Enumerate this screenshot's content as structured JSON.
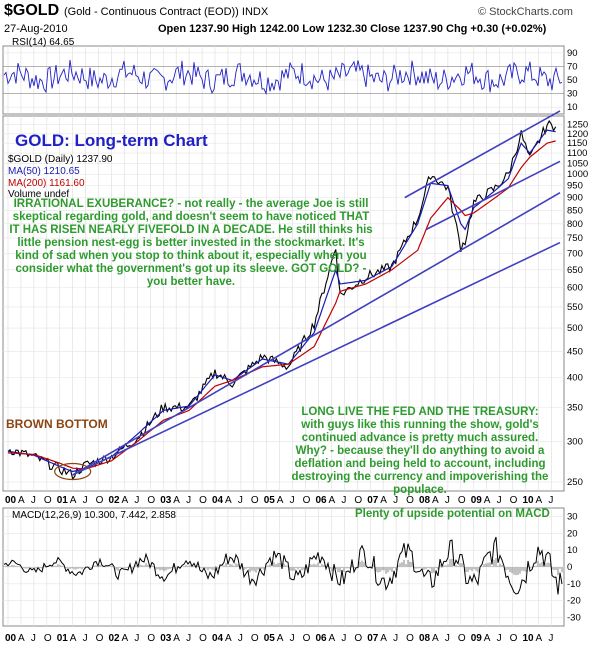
{
  "header": {
    "symbol": "$GOLD",
    "name": "(Gold - Continuous Contract (EOD)) INDX",
    "date": "27-Aug-2010",
    "ohlc": "Open 1237.90  High 1242.00  Low 1232.30  Close 1237.90  Chg +0.30 (+0.02%)",
    "site": "© StockCharts.com"
  },
  "rsi": {
    "label": "RSI(14) 64.65",
    "ticks": [
      "90",
      "70",
      "50",
      "30",
      "10"
    ]
  },
  "title": "GOLD: Long-term Chart",
  "legend": {
    "price": "$GOLD (Daily) 1237.90",
    "ma50": "MA(50) 1210.65",
    "ma200": "MA(200) 1161.60",
    "volume": "Volume undef"
  },
  "colors": {
    "price": "#000000",
    "ma50": "#1a1ab4",
    "ma200": "#c00000",
    "annotation": "#2e9b2e",
    "brown": "#8b4513",
    "trendline": "#4040c0",
    "rsi": "#2020c8"
  },
  "annotations": {
    "irrational": "IRRATIONAL EXUBERANCE? - not really - the average Joe is still skeptical regarding gold, and doesn't seem to have noticed THAT IT HAS RISEN NEARLY FIVEFOLD IN A DECADE. He still thinks his little pension nest-egg is better invested in the stockmarket. It's kind of sad when you stop to think about it, especially when you consider what the government's got up its sleeve. GOT GOLD? - you better have.",
    "brown_bottom": "BROWN BOTTOM",
    "fed": "LONG LIVE THE FED AND THE TREASURY: with guys like this running the show, gold's continued advance is pretty much assured. Why? - because they'll do anything to avoid a deflation and being held to account, including destroying the currency and impoverishing the populace.",
    "macd_note": "Plenty of upside potential on MACD"
  },
  "macd": {
    "label": "MACD(12,26,9) 10.300, 7.442, 2.858",
    "ticks": [
      "30",
      "20",
      "10",
      "0",
      "-10",
      "-20",
      "-30"
    ]
  },
  "x_labels": [
    "00",
    "A",
    "J",
    "O",
    "01",
    "A",
    "J",
    "O",
    "02",
    "A",
    "J",
    "O",
    "03",
    "A",
    "J",
    "O",
    "04",
    "A",
    "J",
    "O",
    "05",
    "A",
    "J",
    "O",
    "06",
    "A",
    "J",
    "O",
    "07",
    "A",
    "J",
    "O",
    "08",
    "A",
    "J",
    "O",
    "09",
    "A",
    "J",
    "O",
    "10",
    "A",
    "J"
  ],
  "chart_data": {
    "type": "line",
    "title": "GOLD: Long-term Chart",
    "scale": "log",
    "ylim": [
      240,
      1300
    ],
    "yticks": [
      250,
      300,
      350,
      400,
      450,
      500,
      550,
      600,
      650,
      700,
      750,
      800,
      850,
      900,
      950,
      1000,
      1050,
      1100,
      1150,
      1200,
      1250
    ],
    "x": [
      "2000-01",
      "2000-07",
      "2001-01",
      "2001-04",
      "2001-07",
      "2002-01",
      "2002-07",
      "2003-01",
      "2003-07",
      "2004-01",
      "2004-05",
      "2004-12",
      "2005-06",
      "2005-12",
      "2006-05",
      "2006-06",
      "2006-12",
      "2007-06",
      "2007-12",
      "2008-03",
      "2008-07",
      "2008-10",
      "2008-11",
      "2009-01",
      "2009-06",
      "2009-09",
      "2009-12",
      "2010-02",
      "2010-06",
      "2010-08"
    ],
    "series": [
      {
        "name": "$GOLD",
        "values": [
          290,
          280,
          265,
          258,
          270,
          280,
          305,
          350,
          350,
          410,
          390,
          440,
          420,
          510,
          720,
          580,
          630,
          660,
          820,
          1000,
          940,
          720,
          740,
          880,
          940,
          1000,
          1200,
          1070,
          1250,
          1238
        ]
      },
      {
        "name": "MA(50)",
        "values": [
          287,
          282,
          268,
          262,
          266,
          280,
          310,
          345,
          352,
          405,
          395,
          435,
          425,
          490,
          650,
          610,
          620,
          660,
          800,
          960,
          950,
          800,
          780,
          860,
          930,
          980,
          1150,
          1100,
          1220,
          1211
        ]
      },
      {
        "name": "MA(200)",
        "values": [
          285,
          283,
          272,
          266,
          265,
          275,
          300,
          330,
          345,
          385,
          395,
          420,
          425,
          460,
          560,
          590,
          610,
          650,
          710,
          820,
          900,
          850,
          830,
          840,
          900,
          940,
          1030,
          1080,
          1150,
          1162
        ]
      }
    ],
    "rsi": {
      "name": "RSI(14)",
      "last": 64.65,
      "yticks": [
        90,
        70,
        50,
        30,
        10
      ]
    },
    "macd": {
      "name": "MACD(12,26,9)",
      "values": [
        10.3,
        7.442,
        2.858
      ],
      "yticks": [
        30,
        20,
        10,
        0,
        -10,
        -20,
        -30
      ]
    }
  }
}
